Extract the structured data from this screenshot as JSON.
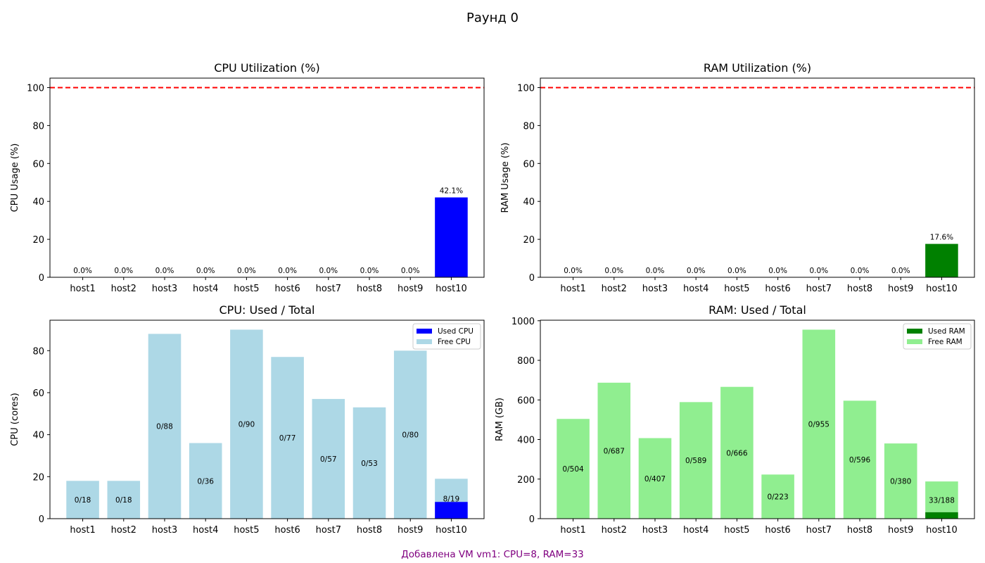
{
  "figure": {
    "suptitle": "Раунд 0",
    "footer": "Добавлена VM vm1: CPU=8, RAM=33",
    "footer_color": "#800080"
  },
  "chart_data": [
    {
      "id": "cpu_util",
      "type": "bar",
      "title": "CPU Utilization (%)",
      "xlabel": "",
      "ylabel": "CPU Usage (%)",
      "categories": [
        "host1",
        "host2",
        "host3",
        "host4",
        "host5",
        "host6",
        "host7",
        "host8",
        "host9",
        "host10"
      ],
      "values": [
        0,
        0,
        0,
        0,
        0,
        0,
        0,
        0,
        0,
        42.1
      ],
      "data_labels": [
        "0.0%",
        "0.0%",
        "0.0%",
        "0.0%",
        "0.0%",
        "0.0%",
        "0.0%",
        "0.0%",
        "0.0%",
        "42.1%"
      ],
      "color": "#0000ff",
      "ylim": [
        0,
        105
      ],
      "yticks": [
        0,
        20,
        40,
        60,
        80,
        100
      ],
      "threshold": {
        "value": 100,
        "color": "#ff0000",
        "style": "dashed"
      },
      "grid": false
    },
    {
      "id": "ram_util",
      "type": "bar",
      "title": "RAM Utilization (%)",
      "xlabel": "",
      "ylabel": "RAM Usage (%)",
      "categories": [
        "host1",
        "host2",
        "host3",
        "host4",
        "host5",
        "host6",
        "host7",
        "host8",
        "host9",
        "host10"
      ],
      "values": [
        0,
        0,
        0,
        0,
        0,
        0,
        0,
        0,
        0,
        17.6
      ],
      "data_labels": [
        "0.0%",
        "0.0%",
        "0.0%",
        "0.0%",
        "0.0%",
        "0.0%",
        "0.0%",
        "0.0%",
        "0.0%",
        "17.6%"
      ],
      "color": "#008000",
      "ylim": [
        0,
        105
      ],
      "yticks": [
        0,
        20,
        40,
        60,
        80,
        100
      ],
      "threshold": {
        "value": 100,
        "color": "#ff0000",
        "style": "dashed"
      },
      "grid": false
    },
    {
      "id": "cpu_used_total",
      "type": "bar",
      "stacked": true,
      "title": "CPU: Used / Total",
      "xlabel": "",
      "ylabel": "CPU (cores)",
      "categories": [
        "host1",
        "host2",
        "host3",
        "host4",
        "host5",
        "host6",
        "host7",
        "host8",
        "host9",
        "host10"
      ],
      "series": [
        {
          "name": "Used CPU",
          "color": "#0000ff",
          "values": [
            0,
            0,
            0,
            0,
            0,
            0,
            0,
            0,
            0,
            8
          ]
        },
        {
          "name": "Free CPU",
          "color": "#add8e6",
          "values": [
            18,
            18,
            88,
            36,
            90,
            77,
            57,
            53,
            80,
            11
          ]
        }
      ],
      "totals": [
        18,
        18,
        88,
        36,
        90,
        77,
        57,
        53,
        80,
        19
      ],
      "data_labels": [
        "0/18",
        "0/18",
        "0/88",
        "0/36",
        "0/90",
        "0/77",
        "0/57",
        "0/53",
        "0/80",
        "8/19"
      ],
      "ylim": [
        0,
        94.5
      ],
      "yticks": [
        0,
        20,
        40,
        60,
        80
      ],
      "legend": "top-right",
      "grid": false
    },
    {
      "id": "ram_used_total",
      "type": "bar",
      "stacked": true,
      "title": "RAM: Used / Total",
      "xlabel": "",
      "ylabel": "RAM (GB)",
      "categories": [
        "host1",
        "host2",
        "host3",
        "host4",
        "host5",
        "host6",
        "host7",
        "host8",
        "host9",
        "host10"
      ],
      "series": [
        {
          "name": "Used RAM",
          "color": "#008000",
          "values": [
            0,
            0,
            0,
            0,
            0,
            0,
            0,
            0,
            0,
            33
          ]
        },
        {
          "name": "Free RAM",
          "color": "#90ee90",
          "values": [
            504,
            687,
            407,
            589,
            666,
            223,
            955,
            596,
            380,
            155
          ]
        }
      ],
      "totals": [
        504,
        687,
        407,
        589,
        666,
        223,
        955,
        596,
        380,
        188
      ],
      "data_labels": [
        "0/504",
        "0/687",
        "0/407",
        "0/589",
        "0/666",
        "0/223",
        "0/955",
        "0/596",
        "0/380",
        "33/188"
      ],
      "ylim": [
        0,
        1002.75
      ],
      "yticks": [
        0,
        200,
        400,
        600,
        800,
        1000
      ],
      "legend": "top-right",
      "grid": false
    }
  ]
}
